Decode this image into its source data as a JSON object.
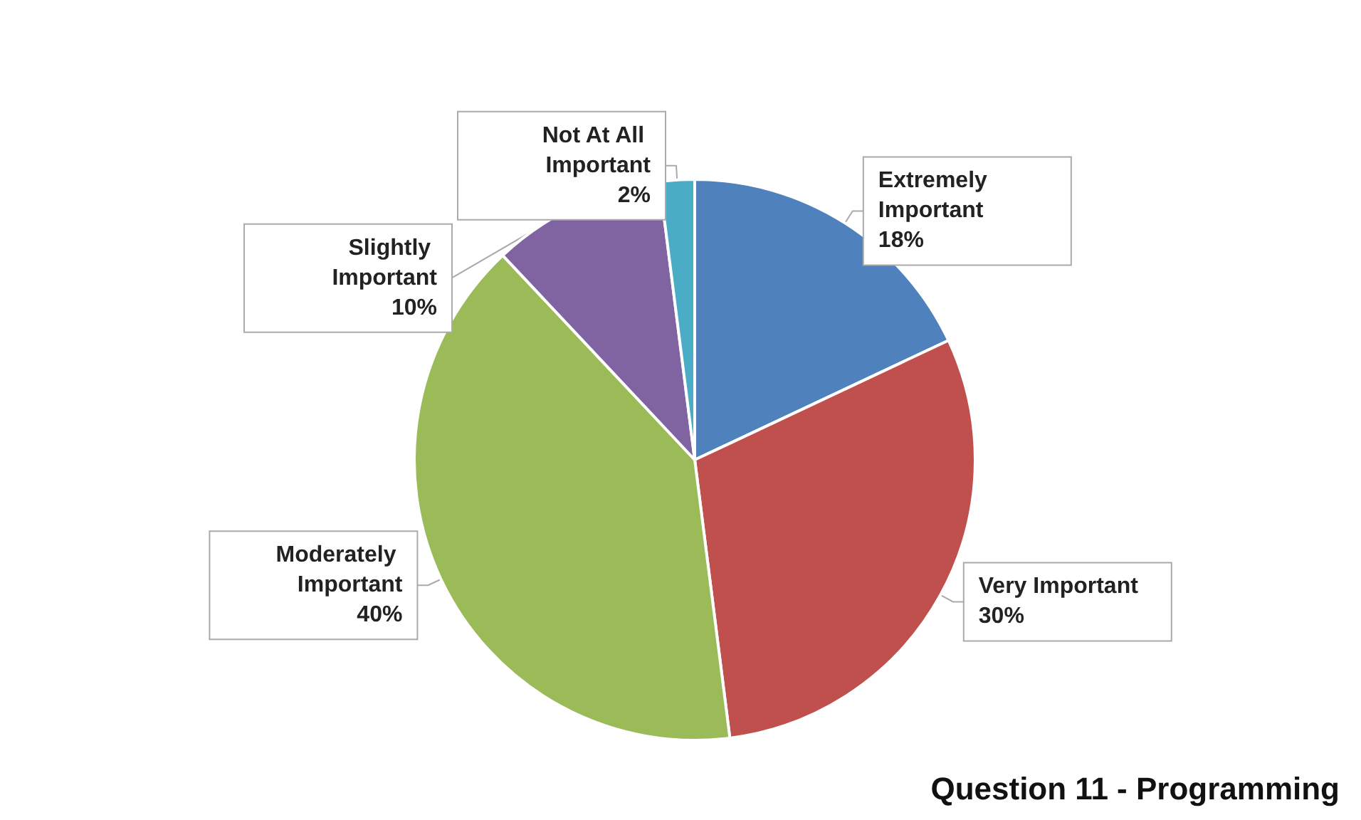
{
  "chart_data": {
    "type": "pie",
    "title": "Question 11 - Programming",
    "categories": [
      "Extremely Important",
      "Very Important",
      "Moderately Important",
      "Slightly Important",
      "Not At All Important"
    ],
    "values": [
      18,
      30,
      40,
      10,
      2
    ],
    "colors": [
      "#4f81bd",
      "#c0504d",
      "#9bbb59",
      "#8064a2",
      "#4bacc6"
    ],
    "value_labels": [
      "18%",
      "30%",
      "40%",
      "10%",
      "2%"
    ]
  }
}
